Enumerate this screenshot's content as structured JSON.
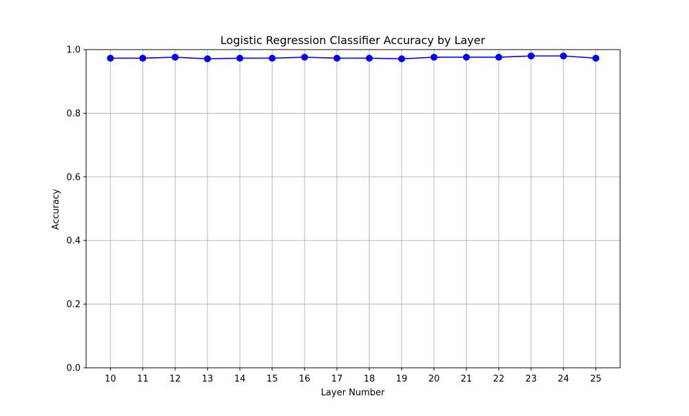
{
  "chart_data": {
    "type": "line",
    "title": "Logistic Regression Classifier Accuracy by Layer",
    "xlabel": "Layer Number",
    "ylabel": "Accuracy",
    "x": [
      10,
      11,
      12,
      13,
      14,
      15,
      16,
      17,
      18,
      19,
      20,
      21,
      22,
      23,
      24,
      25
    ],
    "series": [
      {
        "values": [
          0.973,
          0.973,
          0.976,
          0.971,
          0.973,
          0.973,
          0.976,
          0.973,
          0.973,
          0.971,
          0.976,
          0.976,
          0.976,
          0.98,
          0.98,
          0.973
        ],
        "color": "#0000ff",
        "marker": "circle"
      }
    ],
    "xlim": [
      9.25,
      25.75
    ],
    "ylim": [
      0.0,
      1.0
    ],
    "xticks": [
      "10",
      "11",
      "12",
      "13",
      "14",
      "15",
      "16",
      "17",
      "18",
      "19",
      "20",
      "21",
      "22",
      "23",
      "24",
      "25"
    ],
    "yticks": [
      "0.0",
      "0.2",
      "0.4",
      "0.6",
      "0.8",
      "1.0"
    ],
    "grid": true,
    "grid_color": "#b0b0b0"
  }
}
